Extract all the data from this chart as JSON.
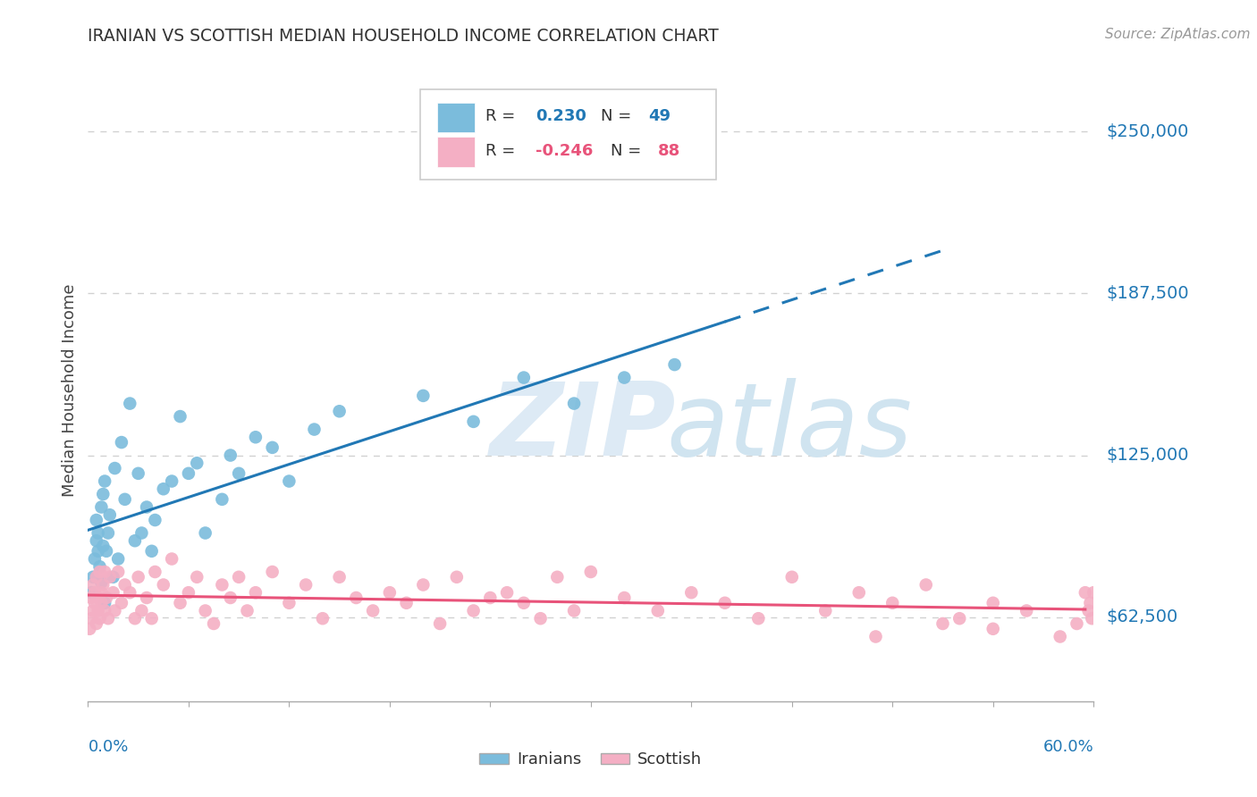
{
  "title": "IRANIAN VS SCOTTISH MEDIAN HOUSEHOLD INCOME CORRELATION CHART",
  "source": "Source: ZipAtlas.com",
  "ylabel": "Median Household Income",
  "ytick_labels": [
    "$62,500",
    "$125,000",
    "$187,500",
    "$250,000"
  ],
  "ytick_values": [
    62500,
    125000,
    187500,
    250000
  ],
  "ymin": 30000,
  "ymax": 270000,
  "xmin": 0.0,
  "xmax": 0.6,
  "iranians_color": "#7bbcdc",
  "scottish_color": "#f4afc4",
  "iranians_line_color": "#2178b5",
  "scottish_line_color": "#e8537a",
  "legend_text_color_blue": "#2178b5",
  "legend_text_color_pink": "#e8537a",
  "axis_label_color": "#2178b5",
  "watermark_zip_color": "#ddeaf5",
  "watermark_atlas_color": "#d0e4f0",
  "background_color": "#ffffff",
  "grid_color": "#cccccc",
  "iranians_x": [
    0.002,
    0.003,
    0.004,
    0.005,
    0.005,
    0.006,
    0.006,
    0.007,
    0.008,
    0.008,
    0.009,
    0.009,
    0.01,
    0.01,
    0.011,
    0.012,
    0.013,
    0.015,
    0.016,
    0.018,
    0.02,
    0.022,
    0.025,
    0.028,
    0.03,
    0.032,
    0.035,
    0.038,
    0.04,
    0.045,
    0.05,
    0.055,
    0.06,
    0.065,
    0.07,
    0.08,
    0.085,
    0.09,
    0.1,
    0.11,
    0.12,
    0.135,
    0.15,
    0.2,
    0.23,
    0.26,
    0.29,
    0.32,
    0.35
  ],
  "iranians_y": [
    72000,
    78000,
    85000,
    92000,
    100000,
    88000,
    95000,
    82000,
    76000,
    105000,
    90000,
    110000,
    68000,
    115000,
    88000,
    95000,
    102000,
    78000,
    120000,
    85000,
    130000,
    108000,
    145000,
    92000,
    118000,
    95000,
    105000,
    88000,
    100000,
    112000,
    115000,
    140000,
    118000,
    122000,
    95000,
    108000,
    125000,
    118000,
    132000,
    128000,
    115000,
    135000,
    142000,
    148000,
    138000,
    155000,
    145000,
    155000,
    160000
  ],
  "scottish_x": [
    0.001,
    0.002,
    0.002,
    0.003,
    0.003,
    0.004,
    0.004,
    0.005,
    0.005,
    0.006,
    0.006,
    0.007,
    0.007,
    0.008,
    0.008,
    0.009,
    0.01,
    0.01,
    0.011,
    0.012,
    0.013,
    0.015,
    0.016,
    0.018,
    0.02,
    0.022,
    0.025,
    0.028,
    0.03,
    0.032,
    0.035,
    0.038,
    0.04,
    0.045,
    0.05,
    0.055,
    0.06,
    0.065,
    0.07,
    0.075,
    0.08,
    0.085,
    0.09,
    0.095,
    0.1,
    0.11,
    0.12,
    0.13,
    0.14,
    0.15,
    0.16,
    0.17,
    0.18,
    0.19,
    0.2,
    0.21,
    0.22,
    0.23,
    0.24,
    0.25,
    0.26,
    0.27,
    0.28,
    0.29,
    0.3,
    0.32,
    0.34,
    0.36,
    0.38,
    0.4,
    0.42,
    0.44,
    0.46,
    0.48,
    0.5,
    0.52,
    0.54,
    0.56,
    0.58,
    0.59,
    0.595,
    0.597,
    0.598,
    0.599,
    0.6,
    0.54,
    0.51,
    0.47
  ],
  "scottish_y": [
    58000,
    62000,
    70000,
    65000,
    75000,
    68000,
    72000,
    60000,
    78000,
    65000,
    70000,
    62000,
    80000,
    68000,
    72000,
    75000,
    65000,
    80000,
    70000,
    62000,
    78000,
    72000,
    65000,
    80000,
    68000,
    75000,
    72000,
    62000,
    78000,
    65000,
    70000,
    62000,
    80000,
    75000,
    85000,
    68000,
    72000,
    78000,
    65000,
    60000,
    75000,
    70000,
    78000,
    65000,
    72000,
    80000,
    68000,
    75000,
    62000,
    78000,
    70000,
    65000,
    72000,
    68000,
    75000,
    60000,
    78000,
    65000,
    70000,
    72000,
    68000,
    62000,
    78000,
    65000,
    80000,
    70000,
    65000,
    72000,
    68000,
    62000,
    78000,
    65000,
    72000,
    68000,
    75000,
    62000,
    68000,
    65000,
    55000,
    60000,
    72000,
    65000,
    68000,
    62000,
    72000,
    58000,
    60000,
    55000
  ]
}
